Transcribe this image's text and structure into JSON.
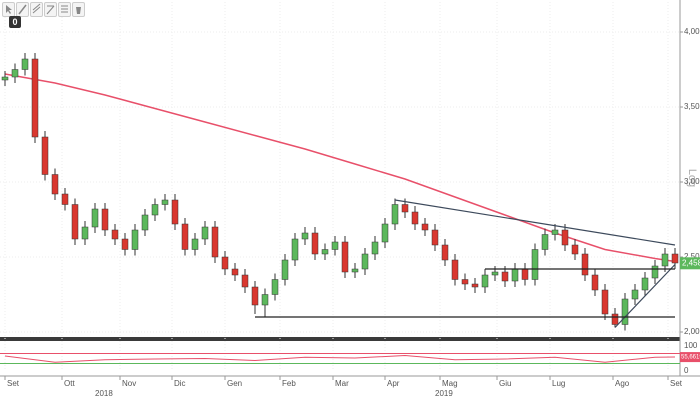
{
  "chart_data": {
    "type": "candlestick",
    "toolbar_badge": "0",
    "log_label": "Log",
    "x": [
      0,
      1,
      2,
      3,
      4,
      5,
      6,
      7,
      8,
      9,
      10,
      11,
      12,
      13,
      14,
      15,
      16,
      17,
      18,
      19,
      20,
      21,
      22,
      23,
      24,
      25,
      26,
      27,
      28,
      29,
      30,
      31,
      32,
      33,
      34,
      35,
      36,
      37,
      38,
      39,
      40,
      41,
      42,
      43,
      44,
      45,
      46,
      47,
      48,
      49,
      50,
      51,
      52,
      53,
      54,
      55,
      56,
      57,
      58,
      59,
      60,
      61,
      62,
      63,
      64,
      65,
      66,
      67
    ],
    "xlim": [
      -0.5,
      67.5
    ],
    "xticks": [
      {
        "value": 0,
        "label": "Set"
      },
      {
        "value": 5.7,
        "label": "Ott"
      },
      {
        "value": 11.5,
        "label": "Nov"
      },
      {
        "value": 16.7,
        "label": "Dic"
      },
      {
        "value": 22,
        "label": "Gen"
      },
      {
        "value": 27.5,
        "label": "Feb"
      },
      {
        "value": 32.8,
        "label": "Mar"
      },
      {
        "value": 38,
        "label": "Apr"
      },
      {
        "value": 43.5,
        "label": "Mag"
      },
      {
        "value": 49.2,
        "label": "Giu"
      },
      {
        "value": 54.5,
        "label": "Lug"
      },
      {
        "value": 60.8,
        "label": "Ago"
      },
      {
        "value": 66.3,
        "label": "Set"
      }
    ],
    "years": [
      {
        "value": 9,
        "label": "2018"
      },
      {
        "value": 43,
        "label": "2019"
      }
    ],
    "ylim": [
      2.0,
      4.2
    ],
    "yticks": [
      {
        "value": 2.0,
        "label": "2,00"
      },
      {
        "value": 2.5,
        "label": "2,50"
      },
      {
        "value": 3.0,
        "label": "3,00"
      },
      {
        "value": 3.5,
        "label": "3,50"
      },
      {
        "value": 4.0,
        "label": "4,00"
      }
    ],
    "grid": true,
    "up_color": "#5cb85c",
    "down_color": "#d9372f",
    "open": [
      3.68,
      3.7,
      3.75,
      3.82,
      3.3,
      3.05,
      2.92,
      2.85,
      2.62,
      2.7,
      2.82,
      2.68,
      2.62,
      2.55,
      2.68,
      2.78,
      2.85,
      2.88,
      2.72,
      2.55,
      2.62,
      2.7,
      2.5,
      2.42,
      2.38,
      2.3,
      2.18,
      2.25,
      2.35,
      2.48,
      2.62,
      2.66,
      2.52,
      2.55,
      2.6,
      2.4,
      2.42,
      2.52,
      2.6,
      2.72,
      2.85,
      2.8,
      2.72,
      2.68,
      2.58,
      2.48,
      2.35,
      2.32,
      2.3,
      2.38,
      2.4,
      2.34,
      2.42,
      2.35,
      2.55,
      2.65,
      2.68,
      2.58,
      2.52,
      2.38,
      2.28,
      2.12,
      2.05,
      2.22,
      2.28,
      2.36,
      2.44,
      2.52
    ],
    "high": [
      3.74,
      3.79,
      3.86,
      3.86,
      3.34,
      3.09,
      2.96,
      2.89,
      2.74,
      2.86,
      2.86,
      2.72,
      2.66,
      2.72,
      2.82,
      2.89,
      2.92,
      2.92,
      2.76,
      2.66,
      2.74,
      2.74,
      2.54,
      2.46,
      2.42,
      2.34,
      2.29,
      2.39,
      2.52,
      2.66,
      2.7,
      2.7,
      2.59,
      2.64,
      2.64,
      2.46,
      2.56,
      2.64,
      2.76,
      2.89,
      2.89,
      2.84,
      2.76,
      2.72,
      2.62,
      2.52,
      2.39,
      2.36,
      2.42,
      2.44,
      2.44,
      2.46,
      2.46,
      2.59,
      2.69,
      2.72,
      2.72,
      2.62,
      2.56,
      2.42,
      2.32,
      2.16,
      2.26,
      2.32,
      2.4,
      2.48,
      2.56,
      2.56
    ],
    "low": [
      3.64,
      3.66,
      3.71,
      3.26,
      3.01,
      2.88,
      2.81,
      2.58,
      2.58,
      2.66,
      2.64,
      2.58,
      2.51,
      2.51,
      2.64,
      2.74,
      2.81,
      2.68,
      2.51,
      2.51,
      2.58,
      2.46,
      2.38,
      2.34,
      2.26,
      2.12,
      2.1,
      2.21,
      2.31,
      2.44,
      2.58,
      2.48,
      2.48,
      2.51,
      2.36,
      2.36,
      2.38,
      2.48,
      2.56,
      2.68,
      2.76,
      2.68,
      2.64,
      2.54,
      2.44,
      2.31,
      2.28,
      2.26,
      2.26,
      2.34,
      2.3,
      2.3,
      2.31,
      2.31,
      2.51,
      2.61,
      2.54,
      2.48,
      2.34,
      2.24,
      2.08,
      2.03,
      2.01,
      2.18,
      2.24,
      2.32,
      2.4,
      2.42
    ],
    "close": [
      3.7,
      3.75,
      3.82,
      3.3,
      3.05,
      2.92,
      2.85,
      2.62,
      2.7,
      2.82,
      2.68,
      2.62,
      2.55,
      2.68,
      2.78,
      2.85,
      2.88,
      2.72,
      2.55,
      2.62,
      2.7,
      2.5,
      2.42,
      2.38,
      2.3,
      2.18,
      2.25,
      2.35,
      2.48,
      2.62,
      2.66,
      2.52,
      2.55,
      2.6,
      2.4,
      2.42,
      2.52,
      2.6,
      2.72,
      2.85,
      2.8,
      2.72,
      2.68,
      2.58,
      2.48,
      2.35,
      2.32,
      2.3,
      2.38,
      2.4,
      2.34,
      2.42,
      2.35,
      2.55,
      2.65,
      2.68,
      2.58,
      2.52,
      2.38,
      2.28,
      2.12,
      2.05,
      2.22,
      2.28,
      2.36,
      2.44,
      2.52,
      2.46
    ],
    "last_price": {
      "value": 2.458,
      "label": "2,458"
    },
    "moving_average": {
      "color": "#e8506a",
      "x": [
        0,
        5,
        10,
        15,
        20,
        25,
        30,
        35,
        40,
        45,
        50,
        55,
        60,
        65,
        67
      ],
      "values": [
        3.72,
        3.66,
        3.58,
        3.49,
        3.4,
        3.31,
        3.22,
        3.12,
        3.02,
        2.9,
        2.78,
        2.66,
        2.55,
        2.49,
        2.47
      ]
    },
    "trendlines": [
      {
        "color": "#3d4a5c",
        "x": [
          39,
          67
        ],
        "values": [
          2.88,
          2.58
        ]
      },
      {
        "color": "#3d4a5c",
        "x": [
          61,
          67
        ],
        "values": [
          2.03,
          2.45
        ]
      },
      {
        "color": "#222222",
        "x": [
          25,
          67
        ],
        "values": [
          2.1,
          2.1
        ]
      },
      {
        "color": "#222222",
        "x": [
          48,
          67
        ],
        "values": [
          2.42,
          2.42
        ]
      }
    ],
    "rsi": {
      "color": "#e8506a",
      "ylim": [
        0,
        100
      ],
      "yticks": [
        0,
        100
      ],
      "levels": [
        30,
        70
      ],
      "x": [
        0,
        5,
        10,
        15,
        20,
        25,
        30,
        35,
        40,
        45,
        50,
        55,
        60,
        65,
        67
      ],
      "values": [
        60,
        35,
        45,
        48,
        50,
        42,
        55,
        52,
        62,
        45,
        48,
        55,
        35,
        55,
        56
      ],
      "last": {
        "value": 55.6619,
        "label": "55,6619"
      }
    }
  }
}
